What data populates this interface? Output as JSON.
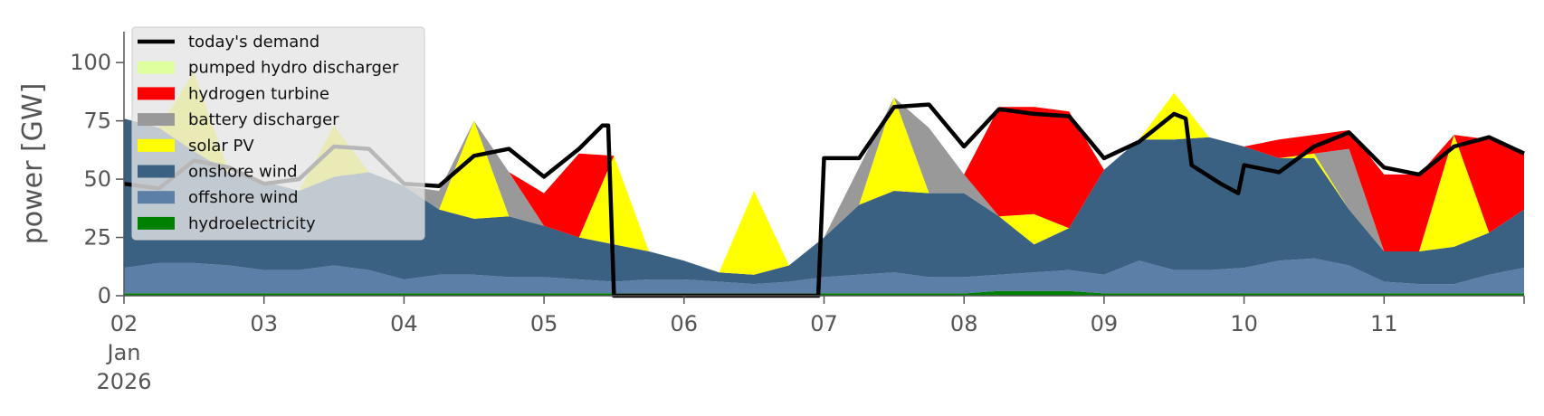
{
  "chart_data": {
    "type": "area",
    "title": "",
    "xlabel": "",
    "ylabel": "power [GW]",
    "ylim": [
      0,
      118
    ],
    "xlim": [
      "2026-01-02 00:00",
      "2026-01-12 00:00"
    ],
    "yticks": [
      {
        "value": 0,
        "label": "0"
      },
      {
        "value": 25,
        "label": "25"
      },
      {
        "value": 50,
        "label": "50"
      },
      {
        "value": 75,
        "label": "75"
      },
      {
        "value": 100,
        "label": "100"
      }
    ],
    "xticks": [
      {
        "x": "2026-01-02",
        "lines": [
          "02",
          "Jan",
          "2026"
        ]
      },
      {
        "x": "2026-01-03",
        "lines": [
          "03"
        ]
      },
      {
        "x": "2026-01-04",
        "lines": [
          "04"
        ]
      },
      {
        "x": "2026-01-05",
        "lines": [
          "05"
        ]
      },
      {
        "x": "2026-01-06",
        "lines": [
          "06"
        ]
      },
      {
        "x": "2026-01-07",
        "lines": [
          "07"
        ]
      },
      {
        "x": "2026-01-08",
        "lines": [
          "08"
        ]
      },
      {
        "x": "2026-01-09",
        "lines": [
          "09"
        ]
      },
      {
        "x": "2026-01-10",
        "lines": [
          "10"
        ]
      },
      {
        "x": "2026-01-11",
        "lines": [
          "11"
        ]
      },
      {
        "x": "2026-01-12",
        "lines": [
          ""
        ]
      }
    ],
    "grid": false,
    "stacked": true,
    "legend_position": "top-left",
    "x": [
      "2026-01-02 00:00",
      "2026-01-02 06:00",
      "2026-01-02 12:00",
      "2026-01-02 18:00",
      "2026-01-03 00:00",
      "2026-01-03 06:00",
      "2026-01-03 12:00",
      "2026-01-03 18:00",
      "2026-01-04 00:00",
      "2026-01-04 06:00",
      "2026-01-04 12:00",
      "2026-01-04 18:00",
      "2026-01-05 00:00",
      "2026-01-05 06:00",
      "2026-01-05 12:00",
      "2026-01-05 18:00",
      "2026-01-06 00:00",
      "2026-01-06 06:00",
      "2026-01-06 12:00",
      "2026-01-06 18:00",
      "2026-01-07 00:00",
      "2026-01-07 06:00",
      "2026-01-07 12:00",
      "2026-01-07 18:00",
      "2026-01-08 00:00",
      "2026-01-08 06:00",
      "2026-01-08 12:00",
      "2026-01-08 18:00",
      "2026-01-09 00:00",
      "2026-01-09 06:00",
      "2026-01-09 12:00",
      "2026-01-09 18:00",
      "2026-01-10 00:00",
      "2026-01-10 06:00",
      "2026-01-10 12:00",
      "2026-01-10 18:00",
      "2026-01-11 00:00",
      "2026-01-11 06:00",
      "2026-01-11 12:00",
      "2026-01-11 18:00",
      "2026-01-12 00:00"
    ],
    "series": [
      {
        "name": "hydroelectricity",
        "color": "#008000",
        "values": [
          1,
          1,
          1,
          1,
          1,
          1,
          1,
          1,
          1,
          1,
          1,
          1,
          1,
          1,
          1,
          1,
          1,
          1,
          1,
          1,
          1,
          1,
          1,
          1,
          1,
          2,
          2,
          2,
          1,
          1,
          1,
          1,
          1,
          1,
          1,
          1,
          1,
          1,
          1,
          1,
          1
        ]
      },
      {
        "name": "offshore wind",
        "color": "#5b7fa6",
        "values": [
          11,
          13,
          13,
          12,
          10,
          10,
          12,
          10,
          6,
          8,
          8,
          7,
          7,
          6,
          5,
          6,
          6,
          5,
          4,
          5,
          7,
          8,
          9,
          7,
          7,
          7,
          8,
          9,
          8,
          14,
          10,
          10,
          11,
          14,
          15,
          12,
          5,
          4,
          4,
          8,
          11
        ]
      },
      {
        "name": "onshore wind",
        "color": "#3b6182",
        "values": [
          64,
          58,
          48,
          40,
          38,
          34,
          38,
          42,
          40,
          28,
          24,
          26,
          22,
          18,
          16,
          12,
          8,
          4,
          4,
          7,
          17,
          30,
          35,
          36,
          36,
          25,
          12,
          18,
          45,
          52,
          56,
          57,
          52,
          44,
          43,
          24,
          13,
          14,
          16,
          18,
          25
        ]
      },
      {
        "name": "solar PV",
        "color": "#ffff00",
        "values": [
          0,
          0,
          34,
          0,
          0,
          0,
          22,
          0,
          0,
          0,
          42,
          0,
          0,
          0,
          38,
          0,
          0,
          0,
          36,
          0,
          0,
          0,
          40,
          0,
          0,
          0,
          13,
          0,
          0,
          0,
          20,
          0,
          0,
          0,
          2,
          0,
          0,
          0,
          48,
          0,
          0
        ]
      },
      {
        "name": "battery discharger",
        "color": "#999999",
        "values": [
          0,
          0,
          0,
          0,
          0,
          0,
          0,
          0,
          0,
          8,
          0,
          19,
          0,
          0,
          0,
          0,
          0,
          0,
          0,
          0,
          0,
          16,
          0,
          28,
          8,
          0,
          0,
          0,
          0,
          0,
          0,
          0,
          0,
          0,
          0,
          26,
          0,
          0,
          0,
          0,
          0
        ]
      },
      {
        "name": "hydrogen turbine",
        "color": "#ff0000",
        "values": [
          0,
          0,
          0,
          0,
          0,
          0,
          0,
          0,
          0,
          0,
          0,
          0,
          14,
          36,
          0,
          0,
          0,
          0,
          0,
          0,
          0,
          0,
          0,
          0,
          0,
          47,
          46,
          50,
          0,
          0,
          0,
          0,
          0,
          8,
          8,
          8,
          33,
          33,
          0,
          40,
          25
        ]
      },
      {
        "name": "pumped hydro discharger",
        "color": "#dfff9f",
        "values": [
          0,
          0,
          0,
          0,
          0,
          0,
          0,
          0,
          0,
          0,
          0,
          0,
          0,
          0,
          0,
          0,
          0,
          0,
          0,
          0,
          0,
          0,
          0,
          0,
          0,
          0,
          0,
          0,
          0,
          0,
          0,
          0,
          0,
          0,
          0,
          0,
          0,
          0,
          0,
          0,
          0
        ]
      }
    ],
    "demand": {
      "name": "today's demand",
      "color": "#000000",
      "points": [
        [
          "2026-01-02 00:00",
          48
        ],
        [
          "2026-01-02 06:00",
          46
        ],
        [
          "2026-01-02 12:00",
          58
        ],
        [
          "2026-01-02 18:00",
          55
        ],
        [
          "2026-01-03 00:00",
          48
        ],
        [
          "2026-01-03 06:00",
          50
        ],
        [
          "2026-01-03 12:00",
          64
        ],
        [
          "2026-01-03 18:00",
          63
        ],
        [
          "2026-01-04 00:00",
          48
        ],
        [
          "2026-01-04 06:00",
          47
        ],
        [
          "2026-01-04 12:00",
          60
        ],
        [
          "2026-01-04 18:00",
          63
        ],
        [
          "2026-01-05 00:00",
          51
        ],
        [
          "2026-01-05 06:00",
          63
        ],
        [
          "2026-01-05 10:00",
          73
        ],
        [
          "2026-01-05 11:00",
          73
        ],
        [
          "2026-01-05 12:00",
          0
        ],
        [
          "2026-01-05 18:00",
          0
        ],
        [
          "2026-01-06 00:00",
          0
        ],
        [
          "2026-01-06 06:00",
          0
        ],
        [
          "2026-01-06 12:00",
          0
        ],
        [
          "2026-01-06 18:00",
          0
        ],
        [
          "2026-01-06 23:00",
          0
        ],
        [
          "2026-01-07 00:00",
          59
        ],
        [
          "2026-01-07 06:00",
          59
        ],
        [
          "2026-01-07 12:00",
          81
        ],
        [
          "2026-01-07 18:00",
          82
        ],
        [
          "2026-01-08 00:00",
          64
        ],
        [
          "2026-01-08 06:00",
          80
        ],
        [
          "2026-01-08 12:00",
          78
        ],
        [
          "2026-01-08 18:00",
          77
        ],
        [
          "2026-01-09 00:00",
          59
        ],
        [
          "2026-01-09 06:00",
          66
        ],
        [
          "2026-01-09 12:00",
          78
        ],
        [
          "2026-01-09 14:00",
          76
        ],
        [
          "2026-01-09 15:00",
          56
        ],
        [
          "2026-01-09 20:00",
          48
        ],
        [
          "2026-01-09 23:00",
          44
        ],
        [
          "2026-01-10 00:00",
          56
        ],
        [
          "2026-01-10 06:00",
          53
        ],
        [
          "2026-01-10 12:00",
          64
        ],
        [
          "2026-01-10 18:00",
          70
        ],
        [
          "2026-01-11 00:00",
          55
        ],
        [
          "2026-01-11 06:00",
          52
        ],
        [
          "2026-01-11 12:00",
          64
        ],
        [
          "2026-01-11 18:00",
          68
        ],
        [
          "2026-01-12 00:00",
          61
        ]
      ]
    }
  },
  "legend": {
    "items": [
      {
        "label": "today's demand",
        "kind": "line",
        "color": "#000000"
      },
      {
        "label": "pumped hydro discharger",
        "kind": "patch",
        "color": "#dfff9f"
      },
      {
        "label": "hydrogen turbine",
        "kind": "patch",
        "color": "#ff0000"
      },
      {
        "label": "battery discharger",
        "kind": "patch",
        "color": "#999999"
      },
      {
        "label": "solar PV",
        "kind": "patch",
        "color": "#ffff00"
      },
      {
        "label": "onshore wind",
        "kind": "patch",
        "color": "#3b6182"
      },
      {
        "label": "offshore wind",
        "kind": "patch",
        "color": "#5b7fa6"
      },
      {
        "label": "hydroelectricity",
        "kind": "patch",
        "color": "#008000"
      }
    ]
  }
}
